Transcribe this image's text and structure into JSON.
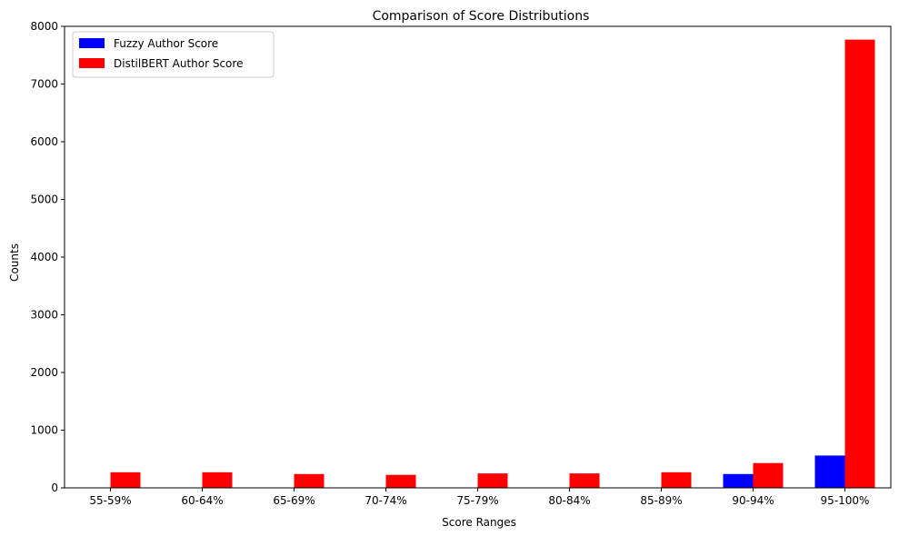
{
  "chart_data": {
    "type": "bar",
    "title": "Comparison of Score Distributions",
    "xlabel": "Score Ranges",
    "ylabel": "Counts",
    "categories": [
      "55-59%",
      "60-64%",
      "65-69%",
      "70-74%",
      "75-79%",
      "80-84%",
      "85-89%",
      "90-94%",
      "95-100%"
    ],
    "series": [
      {
        "name": "Fuzzy Author Score",
        "color": "#0000ff",
        "values": [
          0,
          0,
          0,
          0,
          0,
          0,
          0,
          240,
          560
        ]
      },
      {
        "name": "DistilBERT Author Score",
        "color": "#ff0000",
        "values": [
          270,
          270,
          240,
          225,
          250,
          250,
          270,
          430,
          7770
        ]
      }
    ],
    "ylim": [
      0,
      8000
    ],
    "yticks": [
      0,
      1000,
      2000,
      3000,
      4000,
      5000,
      6000,
      7000,
      8000
    ],
    "grid": false,
    "legend_position": "top-left"
  }
}
